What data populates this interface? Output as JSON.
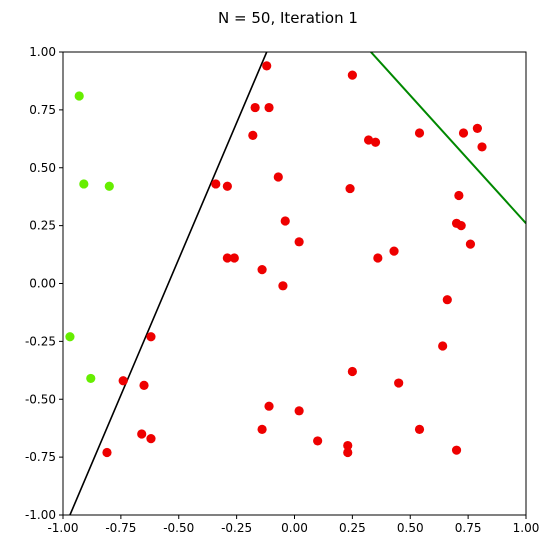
{
  "chart_data": {
    "type": "scatter",
    "title": "N = 50, Iteration 1",
    "xlabel": "",
    "ylabel": "",
    "xlim": [
      -1.0,
      1.0
    ],
    "ylim": [
      -1.0,
      1.0
    ],
    "x_ticks": [
      "-1.00",
      "-0.75",
      "-0.50",
      "-0.25",
      "0.00",
      "0.25",
      "0.50",
      "0.75",
      "1.00"
    ],
    "y_ticks": [
      "-1.00",
      "-0.75",
      "-0.50",
      "-0.25",
      "0.00",
      "0.25",
      "0.50",
      "0.75",
      "1.00"
    ],
    "x_tick_values": [
      -1.0,
      -0.75,
      -0.5,
      -0.25,
      0.0,
      0.25,
      0.5,
      0.75,
      1.0
    ],
    "y_tick_values": [
      -1.0,
      -0.75,
      -0.5,
      -0.25,
      0.0,
      0.25,
      0.5,
      0.75,
      1.0
    ],
    "grid": false,
    "series": [
      {
        "color": "#ee0000",
        "points": [
          [
            -0.12,
            0.94
          ],
          [
            0.25,
            0.9
          ],
          [
            -0.17,
            0.76
          ],
          [
            -0.11,
            0.76
          ],
          [
            -0.18,
            0.64
          ],
          [
            0.32,
            0.62
          ],
          [
            0.35,
            0.61
          ],
          [
            0.54,
            0.65
          ],
          [
            0.73,
            0.65
          ],
          [
            0.79,
            0.67
          ],
          [
            0.81,
            0.59
          ],
          [
            -0.34,
            0.43
          ],
          [
            -0.29,
            0.42
          ],
          [
            -0.07,
            0.46
          ],
          [
            0.24,
            0.41
          ],
          [
            0.71,
            0.38
          ],
          [
            -0.04,
            0.27
          ],
          [
            0.7,
            0.26
          ],
          [
            0.72,
            0.25
          ],
          [
            0.02,
            0.18
          ],
          [
            0.76,
            0.17
          ],
          [
            -0.29,
            0.11
          ],
          [
            -0.26,
            0.11
          ],
          [
            0.43,
            0.14
          ],
          [
            0.36,
            0.11
          ],
          [
            -0.14,
            0.06
          ],
          [
            -0.05,
            -0.01
          ],
          [
            0.66,
            -0.07
          ],
          [
            -0.62,
            -0.23
          ],
          [
            0.64,
            -0.27
          ],
          [
            -0.74,
            -0.42
          ],
          [
            -0.65,
            -0.44
          ],
          [
            0.25,
            -0.38
          ],
          [
            0.45,
            -0.43
          ],
          [
            -0.11,
            -0.53
          ],
          [
            0.02,
            -0.55
          ],
          [
            -0.14,
            -0.63
          ],
          [
            0.54,
            -0.63
          ],
          [
            -0.66,
            -0.65
          ],
          [
            -0.62,
            -0.67
          ],
          [
            0.1,
            -0.68
          ],
          [
            0.23,
            -0.7
          ],
          [
            0.23,
            -0.73
          ],
          [
            0.7,
            -0.72
          ],
          [
            -0.81,
            -0.73
          ]
        ]
      },
      {
        "color": "#66ee00",
        "points": [
          [
            -0.93,
            0.81
          ],
          [
            -0.91,
            0.43
          ],
          [
            -0.8,
            0.42
          ],
          [
            -0.97,
            -0.23
          ],
          [
            -0.88,
            -0.41
          ]
        ]
      }
    ],
    "lines": [
      {
        "color": "#000000",
        "x": [
          -0.97,
          -0.12
        ],
        "y": [
          -1.0,
          1.0
        ]
      },
      {
        "color": "#008800",
        "x": [
          0.33,
          1.0
        ],
        "y": [
          1.0,
          0.26
        ]
      }
    ]
  }
}
